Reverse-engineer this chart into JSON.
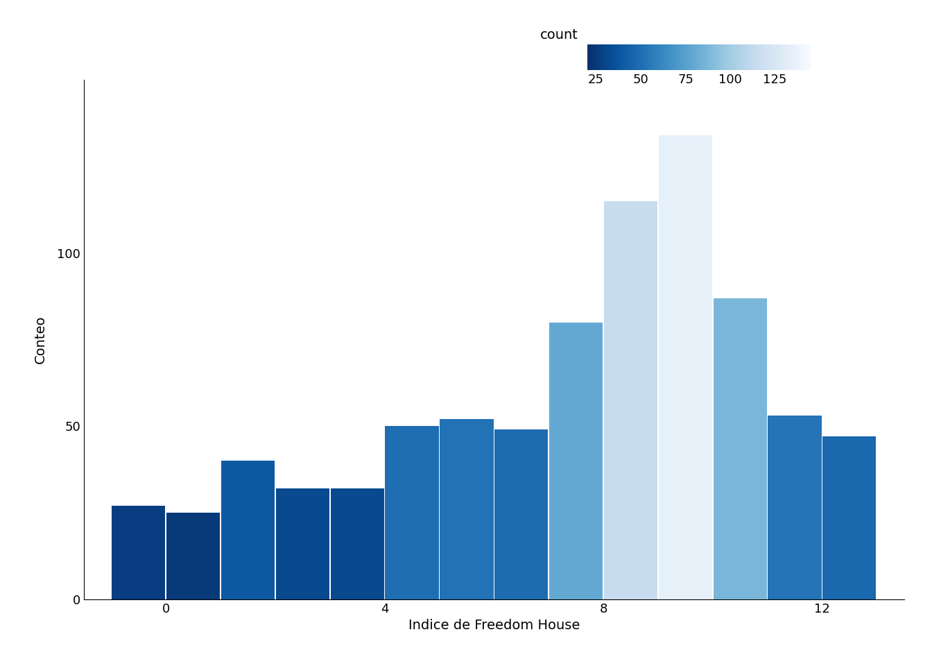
{
  "bin_edges": [
    -1,
    0,
    1,
    2,
    3,
    4,
    5,
    6,
    7,
    8,
    9,
    10,
    11,
    12,
    13
  ],
  "counts": [
    27,
    25,
    40,
    32,
    32,
    50,
    52,
    49,
    80,
    115,
    134,
    87,
    53,
    47
  ],
  "xlabel": "Indice de Freedom House",
  "ylabel": "Conteo",
  "colorbar_label": "count",
  "colorbar_ticks": [
    25,
    50,
    75,
    100,
    125
  ],
  "cmap": "Blues_r",
  "vmin": 20,
  "vmax": 145,
  "background_color": "#ffffff",
  "xlabel_fontsize": 14,
  "ylabel_fontsize": 14,
  "tick_fontsize": 13,
  "colorbar_fontsize": 13,
  "xticks": [
    0,
    4,
    8,
    12
  ],
  "yticks": [
    0,
    50,
    100
  ],
  "xlim": [
    -1.5,
    13.5
  ],
  "ylim_max": 150
}
